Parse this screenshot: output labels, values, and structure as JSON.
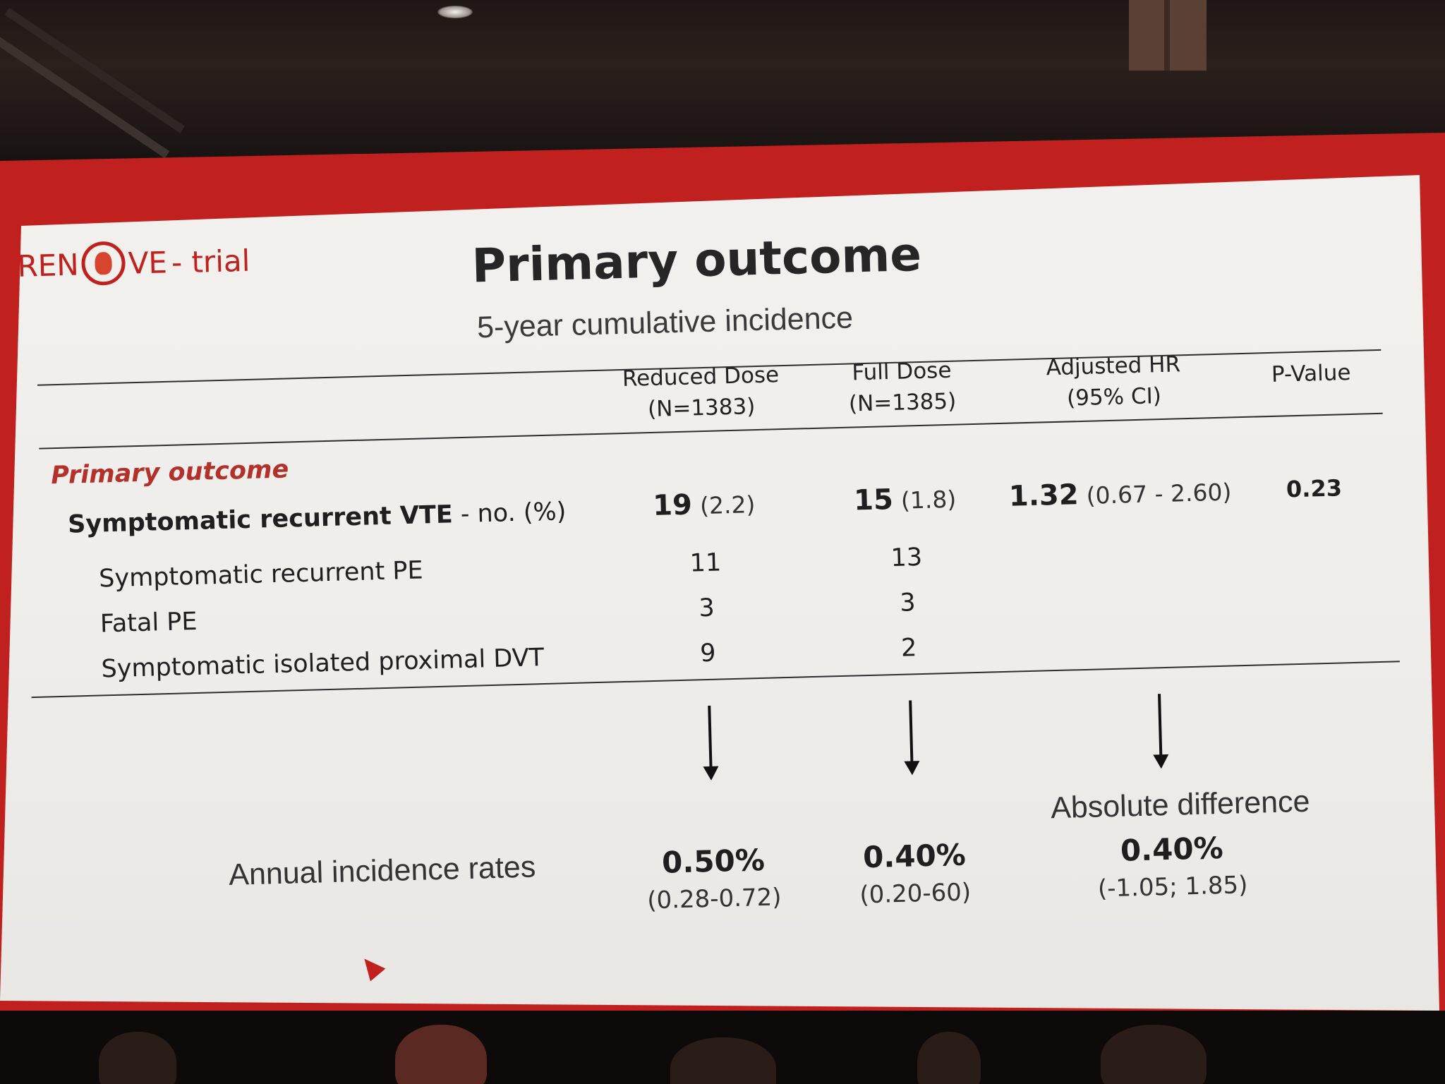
{
  "logo": {
    "left": "REN",
    "right": "VE",
    "separator": "- trial"
  },
  "slide": {
    "title": "Primary outcome",
    "subtitle": "5-year cumulative incidence"
  },
  "table": {
    "columns": [
      {
        "line1": "Reduced Dose",
        "line2": "(N=1383)"
      },
      {
        "line1": "Full Dose",
        "line2": "(N=1385)"
      },
      {
        "line1": "Adjusted HR",
        "line2": "(95% CI)"
      },
      {
        "line1": "P-Value",
        "line2": ""
      }
    ],
    "section_label": "Primary outcome",
    "main_row": {
      "label": "Symptomatic recurrent VTE",
      "label_suffix": " - no. (%)",
      "reduced_value": "19",
      "reduced_pct": "(2.2)",
      "full_value": "15",
      "full_pct": "(1.8)",
      "hr_value": "1.32",
      "hr_ci": "(0.67 - 2.60)",
      "p_value": "0.23"
    },
    "sub_rows": [
      {
        "label": "Symptomatic recurrent PE",
        "reduced": "11",
        "full": "13"
      },
      {
        "label": "Fatal PE",
        "reduced": "3",
        "full": "3"
      },
      {
        "label": "Symptomatic isolated proximal DVT",
        "reduced": "9",
        "full": "2"
      }
    ]
  },
  "annual": {
    "label": "Annual incidence rates",
    "reduced_rate": "0.50%",
    "reduced_ci": "(0.28-0.72)",
    "full_rate": "0.40%",
    "full_ci": "(0.20-60)",
    "abs_diff_label": "Absolute difference",
    "abs_diff_rate": "0.40%",
    "abs_diff_ci": "(-1.05; 1.85)"
  },
  "colors": {
    "brand_red": "#c0211f",
    "slide_background": "#f4f2ef",
    "text": "#1f1f1f"
  }
}
